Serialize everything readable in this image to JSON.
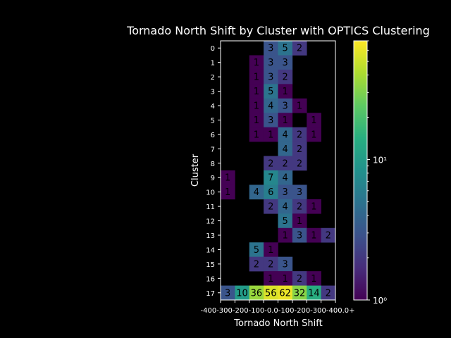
{
  "chart_data": {
    "type": "heatmap",
    "title": "Tornado North Shift by Cluster with OPTICS Clustering",
    "xlabel": "Tornado North Shift",
    "ylabel": "Cluster",
    "x_tick_labels": [
      "-400",
      "-300",
      "-200",
      "-100",
      "0.0",
      "100",
      "200",
      "300",
      "400+"
    ],
    "x_tick_display": "-400-300-200-100-0.0-100-200-300-400.0+",
    "y_tick_labels": [
      "0",
      "1",
      "2",
      "3",
      "4",
      "5",
      "6",
      "7",
      "8",
      "9",
      "10",
      "11",
      "12",
      "13",
      "14",
      "15",
      "16",
      "17"
    ],
    "columns": 8,
    "colorbar": {
      "scale": "log",
      "min": 1,
      "max": 70,
      "tick_labels": [
        "10⁰",
        "10¹"
      ],
      "tick_values": [
        1,
        10
      ],
      "colormap": "viridis"
    },
    "grid": false,
    "rows": [
      [
        null,
        null,
        null,
        3,
        5,
        2,
        null,
        null
      ],
      [
        null,
        null,
        1,
        3,
        3,
        null,
        null,
        null
      ],
      [
        null,
        null,
        1,
        3,
        2,
        null,
        null,
        null
      ],
      [
        null,
        null,
        1,
        5,
        1,
        null,
        null,
        null
      ],
      [
        null,
        null,
        1,
        4,
        3,
        1,
        null,
        null
      ],
      [
        null,
        null,
        1,
        3,
        1,
        null,
        1,
        null
      ],
      [
        null,
        null,
        1,
        1,
        4,
        2,
        1,
        null
      ],
      [
        null,
        null,
        null,
        null,
        4,
        2,
        null,
        null
      ],
      [
        null,
        null,
        null,
        2,
        2,
        2,
        null,
        null
      ],
      [
        1,
        null,
        null,
        7,
        4,
        null,
        null,
        null
      ],
      [
        1,
        null,
        4,
        6,
        3,
        3,
        null,
        null
      ],
      [
        null,
        null,
        null,
        2,
        4,
        2,
        1,
        null
      ],
      [
        null,
        null,
        null,
        null,
        5,
        1,
        null,
        null
      ],
      [
        null,
        null,
        null,
        null,
        1,
        3,
        1,
        2
      ],
      [
        null,
        null,
        5,
        1,
        null,
        null,
        null,
        null
      ],
      [
        null,
        null,
        2,
        2,
        3,
        null,
        null,
        null
      ],
      [
        null,
        null,
        null,
        1,
        1,
        2,
        1,
        null
      ],
      [
        3,
        10,
        36,
        56,
        62,
        32,
        14,
        2
      ]
    ]
  }
}
